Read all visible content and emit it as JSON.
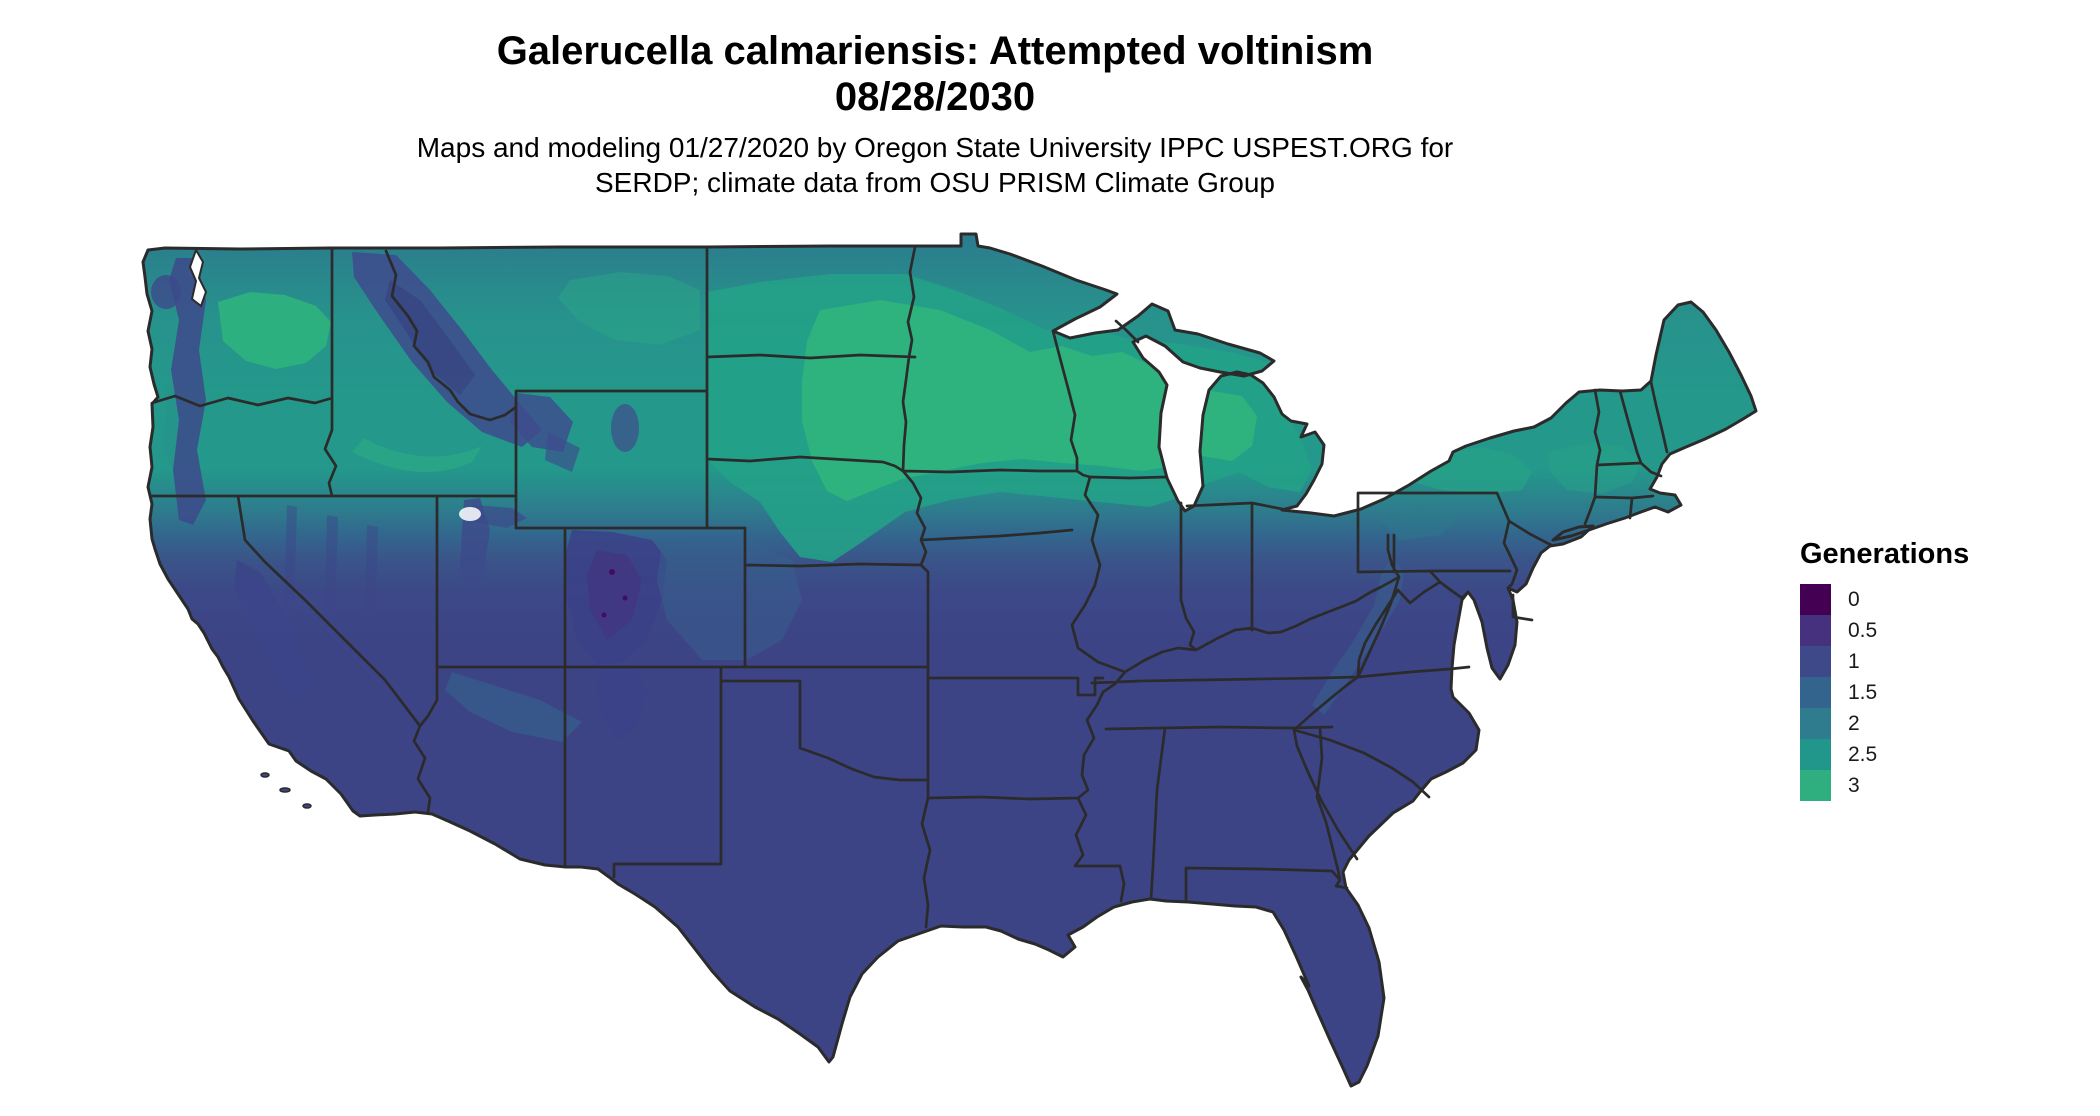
{
  "header": {
    "title_line1": "Galerucella calmariensis: Attempted voltinism",
    "title_line2": "08/28/2030",
    "subtitle_line1": "Maps and modeling 01/27/2020 by Oregon State University IPPC USPEST.ORG for",
    "subtitle_line2": "SERDP; climate data from OSU PRISM Climate Group"
  },
  "legend": {
    "title": "Generations",
    "items": [
      {
        "label": "0",
        "color": "#440154"
      },
      {
        "label": "0.5",
        "color": "#46317E"
      },
      {
        "label": "1",
        "color": "#3D4989"
      },
      {
        "label": "1.5",
        "color": "#32648E"
      },
      {
        "label": "2",
        "color": "#2E7C8D"
      },
      {
        "label": "2.5",
        "color": "#21968B"
      },
      {
        "label": "3",
        "color": "#2FAF7F"
      }
    ]
  },
  "map": {
    "region": "Continental United States",
    "value_variable": "Generations",
    "background_color": "#FFFFFF",
    "border_color": "#2B2B2B",
    "south_fill": "#3C4587",
    "north_fill": "#2FAF7F"
  }
}
